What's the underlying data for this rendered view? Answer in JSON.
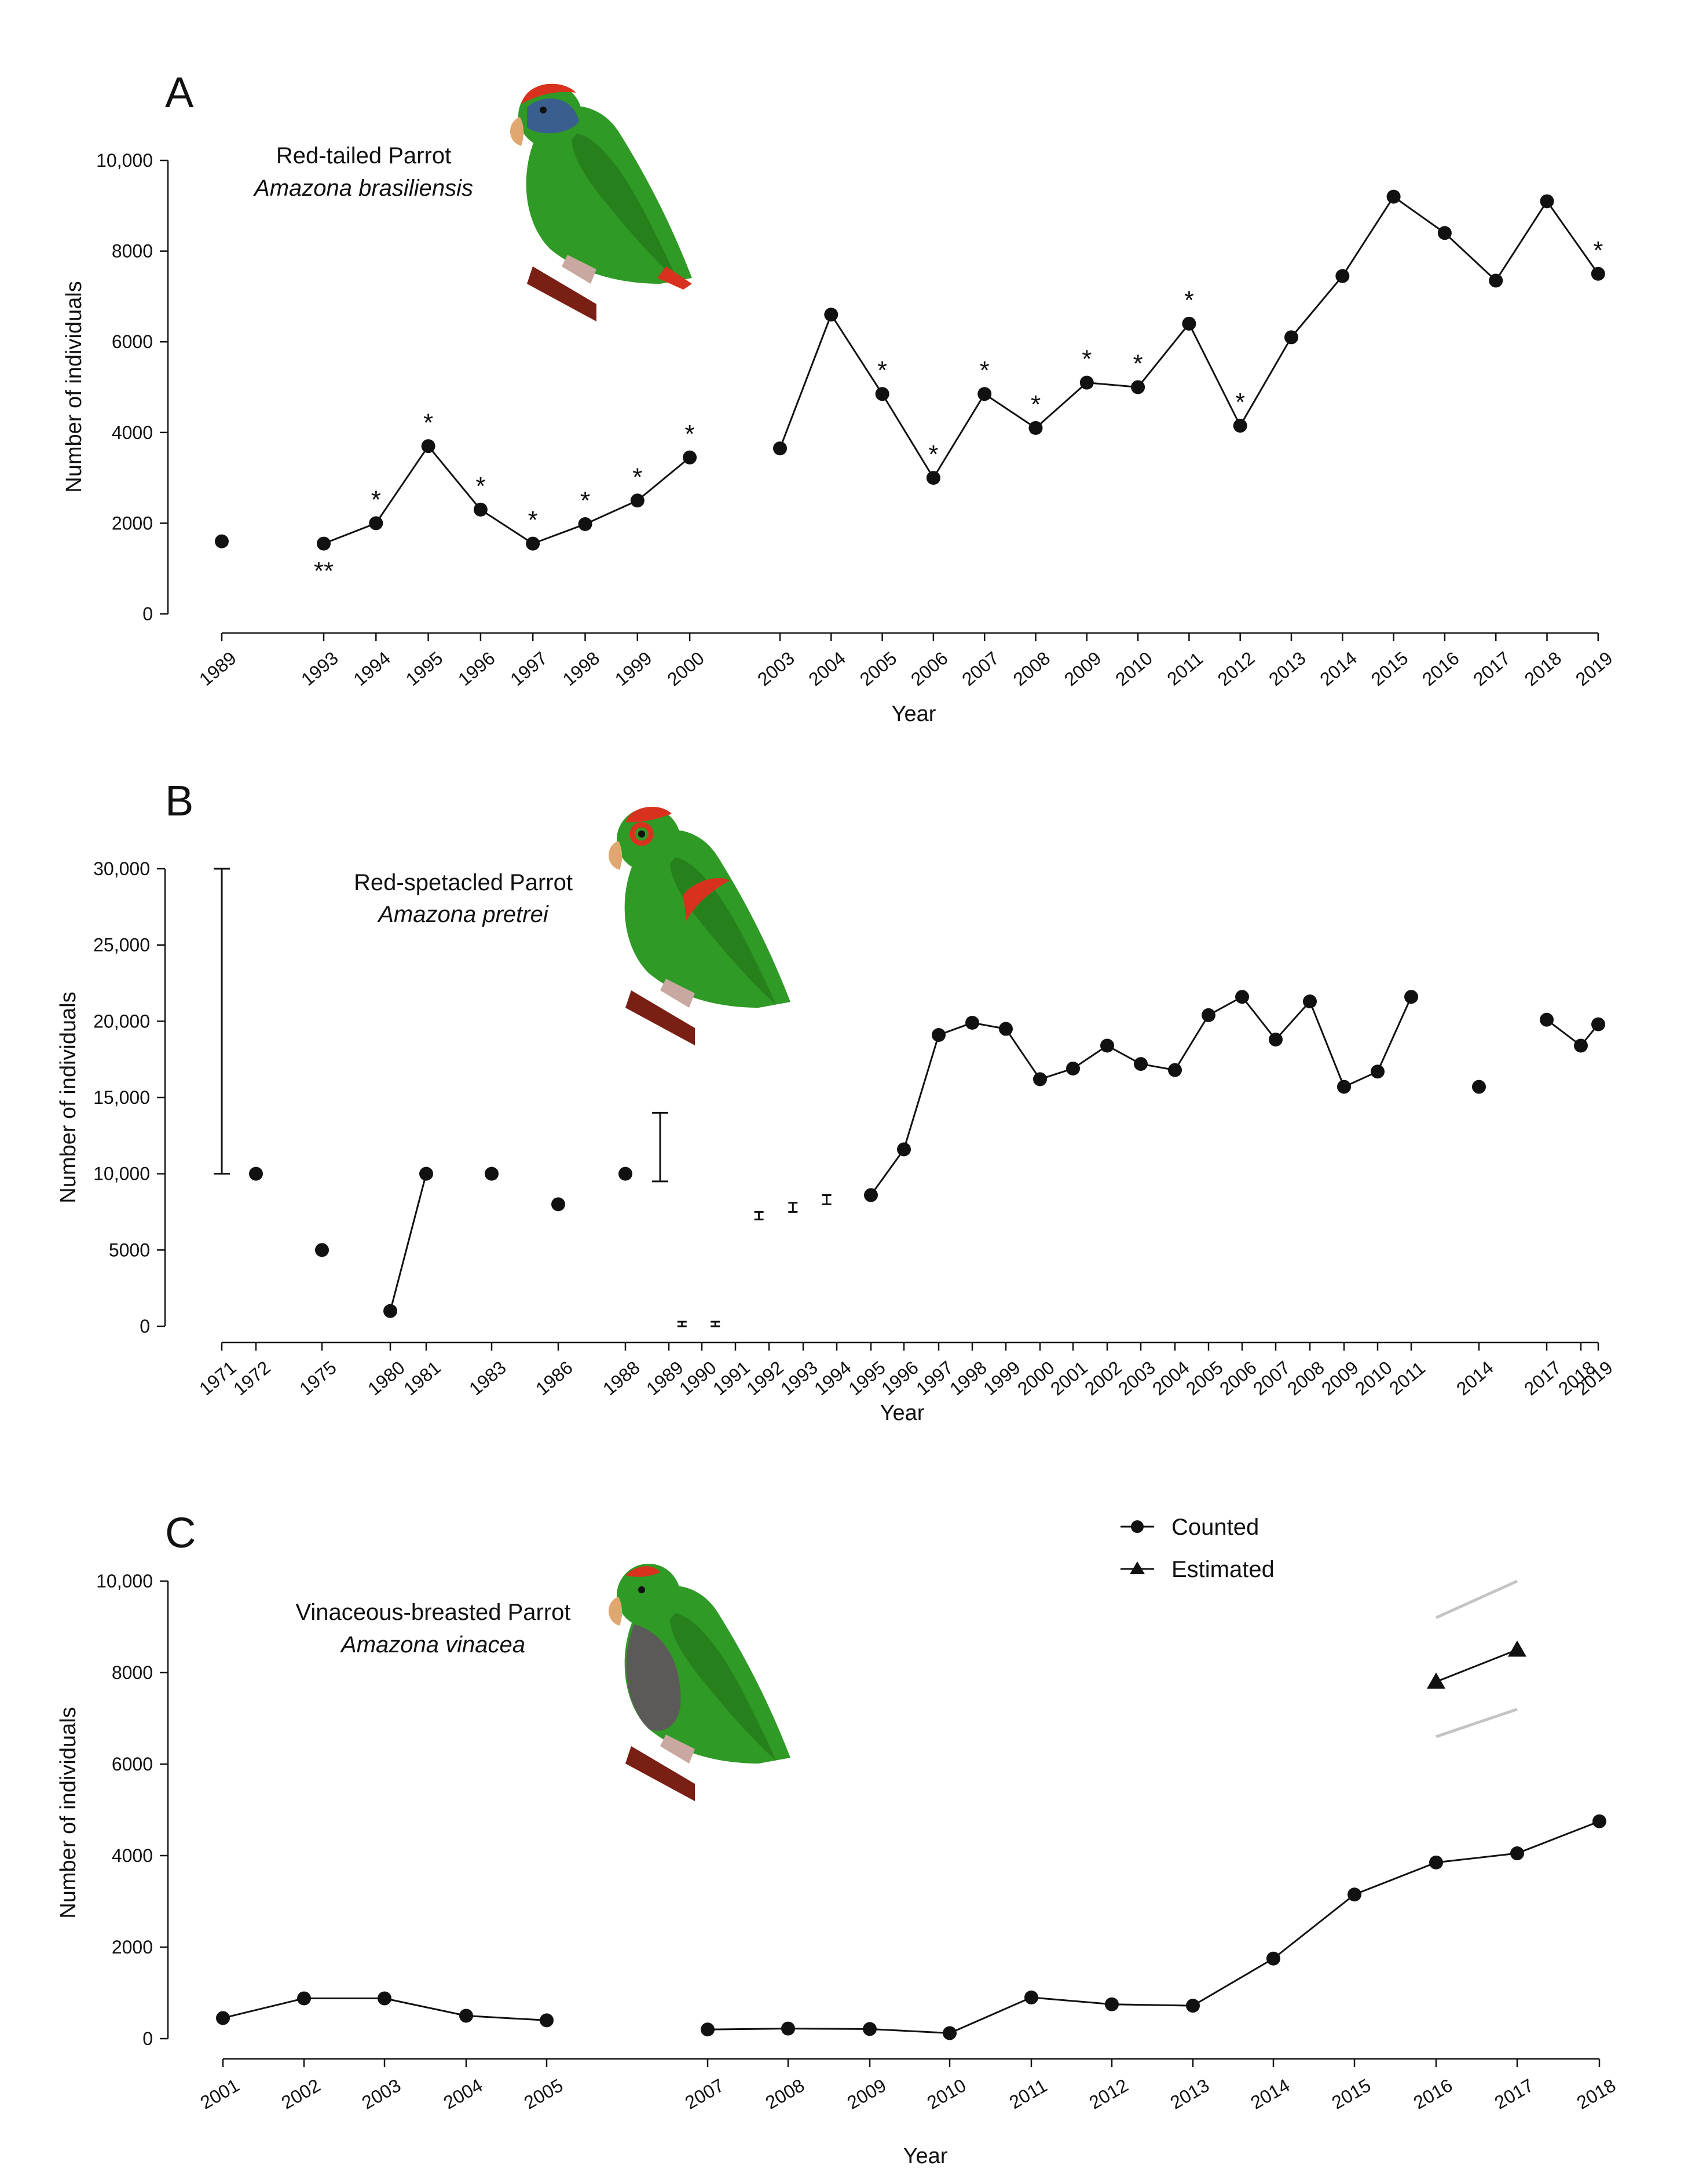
{
  "colors": {
    "ink": "#111111",
    "ci_gray": "#c4c4c4",
    "parrot_green": "#2f9a25",
    "parrot_green_dark": "#1f6e18",
    "forehead_red": "#d8321e",
    "head_blue": "#3a5f8e",
    "branch": "#7a1f14",
    "beak": "#e0a870",
    "breast_gray": "#5c5a58"
  },
  "chart_data": [
    {
      "panel": "A",
      "type": "line",
      "title": "Red-tailed Parrot",
      "species": "Amazona brasiliensis",
      "xlabel": "Year",
      "ylabel": "Number of individuals",
      "ylim": [
        0,
        10000
      ],
      "yticks": [
        0,
        2000,
        4000,
        6000,
        8000,
        10000
      ],
      "ytick_labels": [
        "0",
        "2000",
        "4000",
        "6000",
        "8000",
        "10,000"
      ],
      "categories": [
        "1989",
        "1993",
        "1994",
        "1995",
        "1996",
        "1997",
        "1998",
        "1999",
        "2000",
        "2003",
        "2004",
        "2005",
        "2006",
        "2007",
        "2008",
        "2009",
        "2010",
        "2011",
        "2012",
        "2013",
        "2014",
        "2015",
        "2016",
        "2017",
        "2018",
        "2019"
      ],
      "series": [
        {
          "name": "Counted",
          "marker": "circle",
          "points": [
            {
              "x": "1989",
              "y": 1600,
              "segment": 0
            },
            {
              "x": "1993",
              "y": 1550,
              "segment": 1,
              "note": "**"
            },
            {
              "x": "1994",
              "y": 2000,
              "segment": 1,
              "note": "*"
            },
            {
              "x": "1995",
              "y": 3700,
              "segment": 1,
              "note": "*"
            },
            {
              "x": "1996",
              "y": 2300,
              "segment": 1,
              "note": "*"
            },
            {
              "x": "1997",
              "y": 1550,
              "segment": 1,
              "note": "*"
            },
            {
              "x": "1998",
              "y": 1980,
              "segment": 1,
              "note": "*"
            },
            {
              "x": "1999",
              "y": 2500,
              "segment": 1,
              "note": "*"
            },
            {
              "x": "2000",
              "y": 3450,
              "segment": 1,
              "note": "*"
            },
            {
              "x": "2003",
              "y": 3650,
              "segment": 2
            },
            {
              "x": "2004",
              "y": 6600,
              "segment": 2
            },
            {
              "x": "2005",
              "y": 4850,
              "segment": 2,
              "note": "*"
            },
            {
              "x": "2006",
              "y": 3000,
              "segment": 2,
              "note": "*"
            },
            {
              "x": "2007",
              "y": 4850,
              "segment": 2,
              "note": "*"
            },
            {
              "x": "2008",
              "y": 4100,
              "segment": 2,
              "note": "*"
            },
            {
              "x": "2009",
              "y": 5100,
              "segment": 2,
              "note": "*"
            },
            {
              "x": "2010",
              "y": 5000,
              "segment": 2,
              "note": "*"
            },
            {
              "x": "2011",
              "y": 6400,
              "segment": 2,
              "note": "*"
            },
            {
              "x": "2012",
              "y": 4150,
              "segment": 2,
              "note": "*"
            },
            {
              "x": "2013",
              "y": 6100,
              "segment": 2
            },
            {
              "x": "2014",
              "y": 7450,
              "segment": 2
            },
            {
              "x": "2015",
              "y": 9200,
              "segment": 2
            },
            {
              "x": "2016",
              "y": 8400,
              "segment": 2
            },
            {
              "x": "2017",
              "y": 7350,
              "segment": 2
            },
            {
              "x": "2018",
              "y": 9100,
              "segment": 2
            },
            {
              "x": "2019",
              "y": 7500,
              "segment": 2,
              "note": "*"
            }
          ]
        }
      ]
    },
    {
      "panel": "B",
      "type": "line",
      "title": "Red-spetacled Parrot",
      "species": "Amazona pretrei",
      "xlabel": "Year",
      "ylabel": "Number of individuals",
      "ylim": [
        0,
        30000
      ],
      "yticks": [
        0,
        5000,
        10000,
        15000,
        20000,
        25000,
        30000
      ],
      "ytick_labels": [
        "0",
        "5000",
        "10,000",
        "15,000",
        "20,000",
        "25,000",
        "30,000"
      ],
      "categories": [
        "1971",
        "1972",
        "1975",
        "1980",
        "1981",
        "1983",
        "1986",
        "1988",
        "1989",
        "1990",
        "1991",
        "1992",
        "1993",
        "1994",
        "1995",
        "1996",
        "1997",
        "1998",
        "1999",
        "2000",
        "2001",
        "2002",
        "2003",
        "2004",
        "2005",
        "2006",
        "2007",
        "2008",
        "2009",
        "2010",
        "2011",
        "2014",
        "2017",
        "2018",
        "2019"
      ],
      "series": [
        {
          "name": "Counted",
          "marker": "circle",
          "points": [
            {
              "x": "1972",
              "y": 10000,
              "segment": 0
            },
            {
              "x": "1975",
              "y": 5000,
              "segment": 1
            },
            {
              "x": "1980",
              "y": 1000,
              "segment": 2
            },
            {
              "x": "1981",
              "y": 10000,
              "segment": 2
            },
            {
              "x": "1983",
              "y": 10000,
              "segment": 3
            },
            {
              "x": "1986",
              "y": 8000,
              "segment": 4
            },
            {
              "x": "1988",
              "y": 10000,
              "segment": 5
            },
            {
              "x": "1995",
              "y": 8600,
              "segment": 6
            },
            {
              "x": "1996",
              "y": 11600,
              "segment": 6
            },
            {
              "x": "1997",
              "y": 19100,
              "segment": 6
            },
            {
              "x": "1998",
              "y": 19900,
              "segment": 6
            },
            {
              "x": "1999",
              "y": 19500,
              "segment": 6
            },
            {
              "x": "2000",
              "y": 16200,
              "segment": 6
            },
            {
              "x": "2001",
              "y": 16900,
              "segment": 6
            },
            {
              "x": "2002",
              "y": 18400,
              "segment": 6
            },
            {
              "x": "2003",
              "y": 17200,
              "segment": 6
            },
            {
              "x": "2004",
              "y": 16800,
              "segment": 6
            },
            {
              "x": "2005",
              "y": 20400,
              "segment": 6
            },
            {
              "x": "2006",
              "y": 21600,
              "segment": 6
            },
            {
              "x": "2007",
              "y": 18800,
              "segment": 6
            },
            {
              "x": "2008",
              "y": 21300,
              "segment": 6
            },
            {
              "x": "2009",
              "y": 15700,
              "segment": 6
            },
            {
              "x": "2010",
              "y": 16700,
              "segment": 6
            },
            {
              "x": "2011",
              "y": 21600,
              "segment": 6
            },
            {
              "x": "2014",
              "y": 15700,
              "segment": 7
            },
            {
              "x": "2017",
              "y": 20100,
              "segment": 8
            },
            {
              "x": "2018",
              "y": 18400,
              "segment": 8
            },
            {
              "x": "2019",
              "y": 19800,
              "segment": 8
            }
          ]
        }
      ],
      "ranges": [
        {
          "x": "1971",
          "low": 10000,
          "high": 30000
        },
        {
          "x": "1988.8",
          "low": 9500,
          "high": 14000
        },
        {
          "x": "1989.4",
          "low": 0,
          "high": 300
        },
        {
          "x": "1990.4",
          "low": 0,
          "high": 300
        },
        {
          "x": "1991.7",
          "low": 7000,
          "high": 7500
        },
        {
          "x": "1992.7",
          "low": 7500,
          "high": 8100
        },
        {
          "x": "1993.7",
          "low": 8000,
          "high": 8600
        }
      ]
    },
    {
      "panel": "C",
      "type": "line",
      "title": "Vinaceous-breasted Parrot",
      "species": "Amazona vinacea",
      "xlabel": "Year",
      "ylabel": "Number of individuals",
      "ylim": [
        0,
        10000
      ],
      "yticks": [
        0,
        2000,
        4000,
        6000,
        8000,
        10000
      ],
      "ytick_labels": [
        "0",
        "2000",
        "4000",
        "6000",
        "8000",
        "10,000"
      ],
      "categories": [
        "2001",
        "2002",
        "2003",
        "2004",
        "2005",
        "2007",
        "2008",
        "2009",
        "2010",
        "2011",
        "2012",
        "2013",
        "2014",
        "2015",
        "2016",
        "2017",
        "2018"
      ],
      "legend": {
        "position": "top-right",
        "entries": [
          "Counted",
          "Estimated"
        ]
      },
      "series": [
        {
          "name": "Counted",
          "marker": "circle",
          "points": [
            {
              "x": "2001",
              "y": 450,
              "segment": 0
            },
            {
              "x": "2002",
              "y": 880,
              "segment": 0
            },
            {
              "x": "2003",
              "y": 880,
              "segment": 0
            },
            {
              "x": "2004",
              "y": 500,
              "segment": 0
            },
            {
              "x": "2005",
              "y": 400,
              "segment": 0
            },
            {
              "x": "2007",
              "y": 200,
              "segment": 1
            },
            {
              "x": "2008",
              "y": 220,
              "segment": 1
            },
            {
              "x": "2009",
              "y": 210,
              "segment": 1
            },
            {
              "x": "2010",
              "y": 120,
              "segment": 1
            },
            {
              "x": "2011",
              "y": 900,
              "segment": 1
            },
            {
              "x": "2012",
              "y": 750,
              "segment": 1
            },
            {
              "x": "2013",
              "y": 720,
              "segment": 1
            },
            {
              "x": "2014",
              "y": 1750,
              "segment": 1
            },
            {
              "x": "2015",
              "y": 3150,
              "segment": 1
            },
            {
              "x": "2016",
              "y": 3850,
              "segment": 1
            },
            {
              "x": "2017",
              "y": 4050,
              "segment": 1
            },
            {
              "x": "2018",
              "y": 4750,
              "segment": 1
            }
          ]
        },
        {
          "name": "Estimated",
          "marker": "triangle",
          "points": [
            {
              "x": "2016",
              "y": 7800,
              "segment": 0
            },
            {
              "x": "2017",
              "y": 8500,
              "segment": 0
            }
          ],
          "ci_upper": [
            9200,
            10000
          ],
          "ci_lower": [
            6600,
            7200
          ]
        }
      ]
    }
  ]
}
